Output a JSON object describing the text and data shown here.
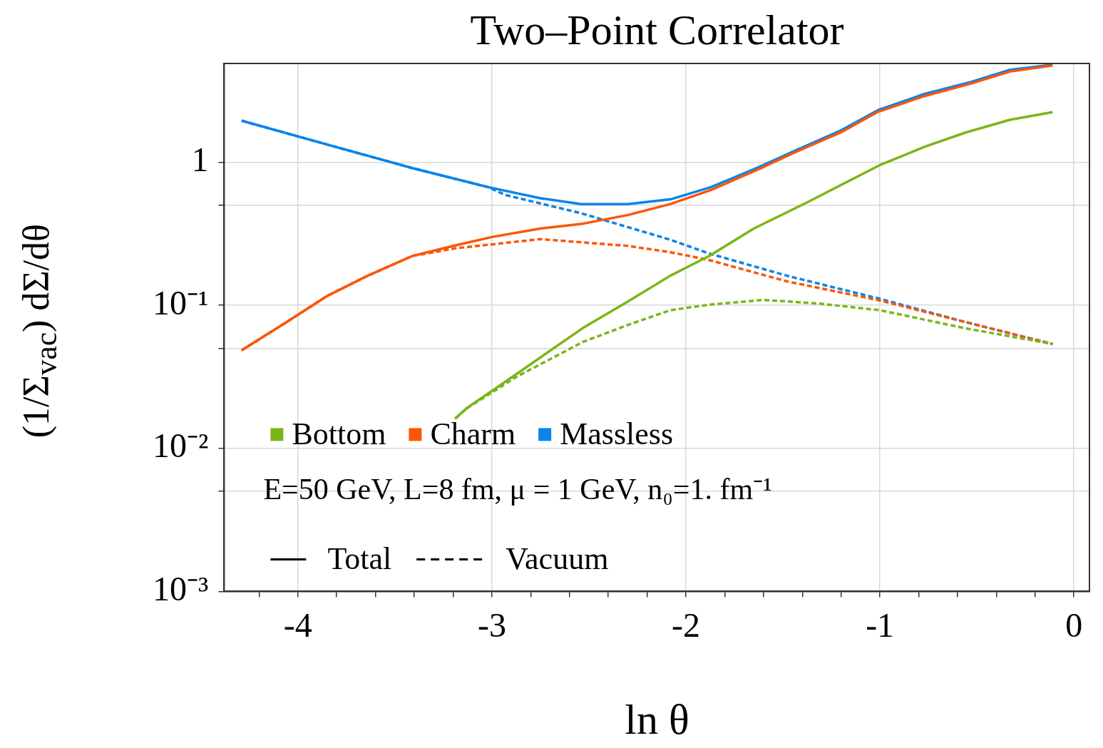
{
  "chart_data": {
    "type": "line",
    "title": "Two–Point Correlator",
    "xlabel": "ln θ",
    "ylabel": "(1/Σ$_{vac}$) dΣ/dθ",
    "log": "y",
    "grid": true,
    "legend": "bottom left",
    "marker": "none",
    "xlim": [
      -4.38,
      0.08
    ],
    "ylim": [
      0.001,
      4.9
    ],
    "xticks": [
      {
        "value": -4.2,
        "label": null
      },
      -4,
      {
        "value": -3.8,
        "label": null
      },
      {
        "value": -3.6,
        "label": null
      },
      {
        "value": -3.4,
        "label": null
      },
      {
        "value": -3.2,
        "label": null
      },
      -3,
      {
        "value": -2.8,
        "label": null
      },
      {
        "value": -2.6,
        "label": null
      },
      {
        "value": -2.4,
        "label": null
      },
      {
        "value": -2.2,
        "label": null
      },
      -2,
      {
        "value": -1.8,
        "label": null
      },
      {
        "value": -1.6,
        "label": null
      },
      {
        "value": -1.4,
        "label": null
      },
      {
        "value": -1.2,
        "label": null
      },
      -1,
      {
        "value": -0.8,
        "label": null
      },
      {
        "value": -0.6,
        "label": null
      },
      {
        "value": -0.4,
        "label": null
      },
      {
        "value": -0.2,
        "label": null
      },
      0
    ],
    "yticks": [
      {
        "value": 0.001,
        "label": "10⁻³"
      },
      {
        "value": 0.005,
        "label": null
      },
      {
        "value": 0.01,
        "label": "10⁻²"
      },
      {
        "value": 0.05,
        "label": null
      },
      {
        "value": 0.1,
        "label": "10⁻¹"
      },
      {
        "value": 0.5,
        "label": null
      },
      1
    ],
    "annotations": [
      "E=50 GeV, L=8 fm, μ = 1 GeV, n₀=1. fm⁻¹",
      "Total",
      "Vacuum"
    ],
    "series": [
      {
        "name": "Bottom",
        "color": "#7cb518",
        "line_style": "solid",
        "x": [
          -3.19,
          -3.13,
          -2.87,
          -2.53,
          -2.3,
          -2.08,
          -1.88,
          -1.65,
          -1.38,
          -1.0,
          -0.77,
          -0.56,
          -0.33,
          -0.11
        ],
        "values": [
          0.0161,
          0.0191,
          0.0333,
          0.0695,
          0.106,
          0.161,
          0.221,
          0.344,
          0.52,
          0.955,
          1.28,
          1.61,
          1.98,
          2.24
        ]
      },
      {
        "name": "Charm",
        "color": "#fb5607",
        "line_style": "solid",
        "x": [
          -4.29,
          -4.07,
          -3.85,
          -3.64,
          -3.41,
          -3.19,
          -3.0,
          -2.75,
          -2.53,
          -2.3,
          -2.08,
          -1.87,
          -1.62,
          -1.44,
          -1.2,
          -1.01,
          -0.77,
          -0.53,
          -0.33,
          -0.11
        ],
        "values": [
          0.0484,
          0.0745,
          0.116,
          0.161,
          0.221,
          0.262,
          0.3,
          0.344,
          0.372,
          0.427,
          0.51,
          0.64,
          0.9,
          1.17,
          1.62,
          2.25,
          2.9,
          3.55,
          4.3,
          4.75
        ]
      },
      {
        "name": "Massless",
        "color": "#0a84e8",
        "line_style": "solid",
        "x": [
          -4.29,
          -3.85,
          -3.41,
          -3.02,
          -2.75,
          -2.54,
          -2.3,
          -2.08,
          -1.87,
          -1.62,
          -1.44,
          -1.2,
          -1.01,
          -0.77,
          -0.53,
          -0.33,
          -0.11
        ],
        "values": [
          1.95,
          1.33,
          0.91,
          0.67,
          0.56,
          0.51,
          0.51,
          0.55,
          0.67,
          0.93,
          1.2,
          1.67,
          2.31,
          3.0,
          3.64,
          4.42,
          4.8
        ]
      },
      {
        "color": "#7cb518",
        "line_style": "dashed",
        "x": [
          -3.19,
          -3.13,
          -2.87,
          -2.53,
          -2.3,
          -2.08,
          -1.88,
          -1.6,
          -1.32,
          -1.0,
          -0.57,
          -0.11
        ],
        "values": [
          0.0161,
          0.019,
          0.0318,
          0.0555,
          0.0728,
          0.0924,
          0.101,
          0.109,
          0.103,
          0.0924,
          0.0695,
          0.0536
        ]
      },
      {
        "color": "#fb5607",
        "line_style": "dashed",
        "x": [
          -4.29,
          -4.07,
          -3.85,
          -3.64,
          -3.41,
          -3.19,
          -2.75,
          -2.3,
          -2.08,
          -1.88,
          -1.48,
          -1.0,
          -0.57,
          -0.11
        ],
        "values": [
          0.0484,
          0.0745,
          0.116,
          0.161,
          0.221,
          0.25,
          0.29,
          0.26,
          0.235,
          0.207,
          0.147,
          0.108,
          0.077,
          0.0536
        ]
      },
      {
        "color": "#0a84e8",
        "line_style": "dashed",
        "x": [
          -4.29,
          -3.85,
          -3.41,
          -3.02,
          -2.93,
          -2.54,
          -2.23,
          -2.08,
          -1.88,
          -1.48,
          -1.0,
          -0.57,
          -0.11
        ],
        "values": [
          1.95,
          1.33,
          0.91,
          0.67,
          0.59,
          0.44,
          0.33,
          0.287,
          0.23,
          0.161,
          0.111,
          0.077,
          0.0536
        ]
      }
    ]
  }
}
